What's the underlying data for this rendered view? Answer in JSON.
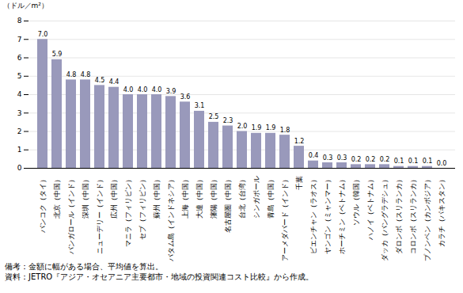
{
  "chart_data": {
    "type": "bar",
    "categories": [
      "バンコク（タイ）",
      "北京（中国）",
      "バンガロール（インド）",
      "深圳（中国）",
      "ニューデリー（インド）",
      "広州（中国）",
      "マニラ（フィリピン）",
      "セブ（フィリピン）",
      "蘇州（中国）",
      "バタム島（インドネシア）",
      "上海（中国）",
      "大連（中国）",
      "瀋陽（中国）",
      "名古屋圏（中国）",
      "台北（台湾）",
      "シンガポール",
      "青島（中国）",
      "アーメダバード（インド）",
      "千葉",
      "ビエンチャン（ラオス）",
      "ヤンゴン（ミャンマー）",
      "ホーチミン（ベトナム）",
      "ソウル（韓国）",
      "ハノイ（ベトナム）",
      "ダッカ（バングラデシュ）",
      "ダロンボ（スリランカ）",
      "コロンボ（スリランカ）",
      "プノンペン（カンボジア）",
      "カラチ（パキスタン）"
    ],
    "values": [
      7.0,
      5.9,
      4.8,
      4.8,
      4.5,
      4.4,
      4.0,
      4.0,
      4.0,
      3.9,
      3.6,
      3.1,
      2.5,
      2.3,
      2.0,
      1.9,
      1.9,
      1.8,
      1.2,
      0.4,
      0.3,
      0.3,
      0.2,
      0.2,
      0.2,
      0.1,
      0.1,
      0.1,
      0.0
    ],
    "value_labels": [
      "7.0",
      "5.9",
      "4.8",
      "4.8",
      "4.5",
      "4.4",
      "4.0",
      "4.0",
      "4.0",
      "3.9",
      "3.6",
      "3.1",
      "2.5",
      "2.3",
      "2.0",
      "1.9",
      "1.9",
      "1.8",
      "1.2",
      "0.4",
      "0.3",
      "0.3",
      "0.2",
      "0.2",
      "0.2",
      "0.1",
      "0.1",
      "0.1",
      "0.0"
    ],
    "data_labels": true,
    "color": "#9999bb",
    "ylabel": "（ドル／m²）",
    "ylim": [
      0,
      8
    ],
    "yticks": [
      0,
      1,
      2,
      3,
      4,
      5,
      6,
      7,
      8
    ],
    "grid": true,
    "annotations": [
      "備考：金額に幅がある場合、平均値を算出。",
      "資料：JETRO『アジア・オセアニア主要都市・地域の投資関連コスト比較』から作成。"
    ]
  }
}
